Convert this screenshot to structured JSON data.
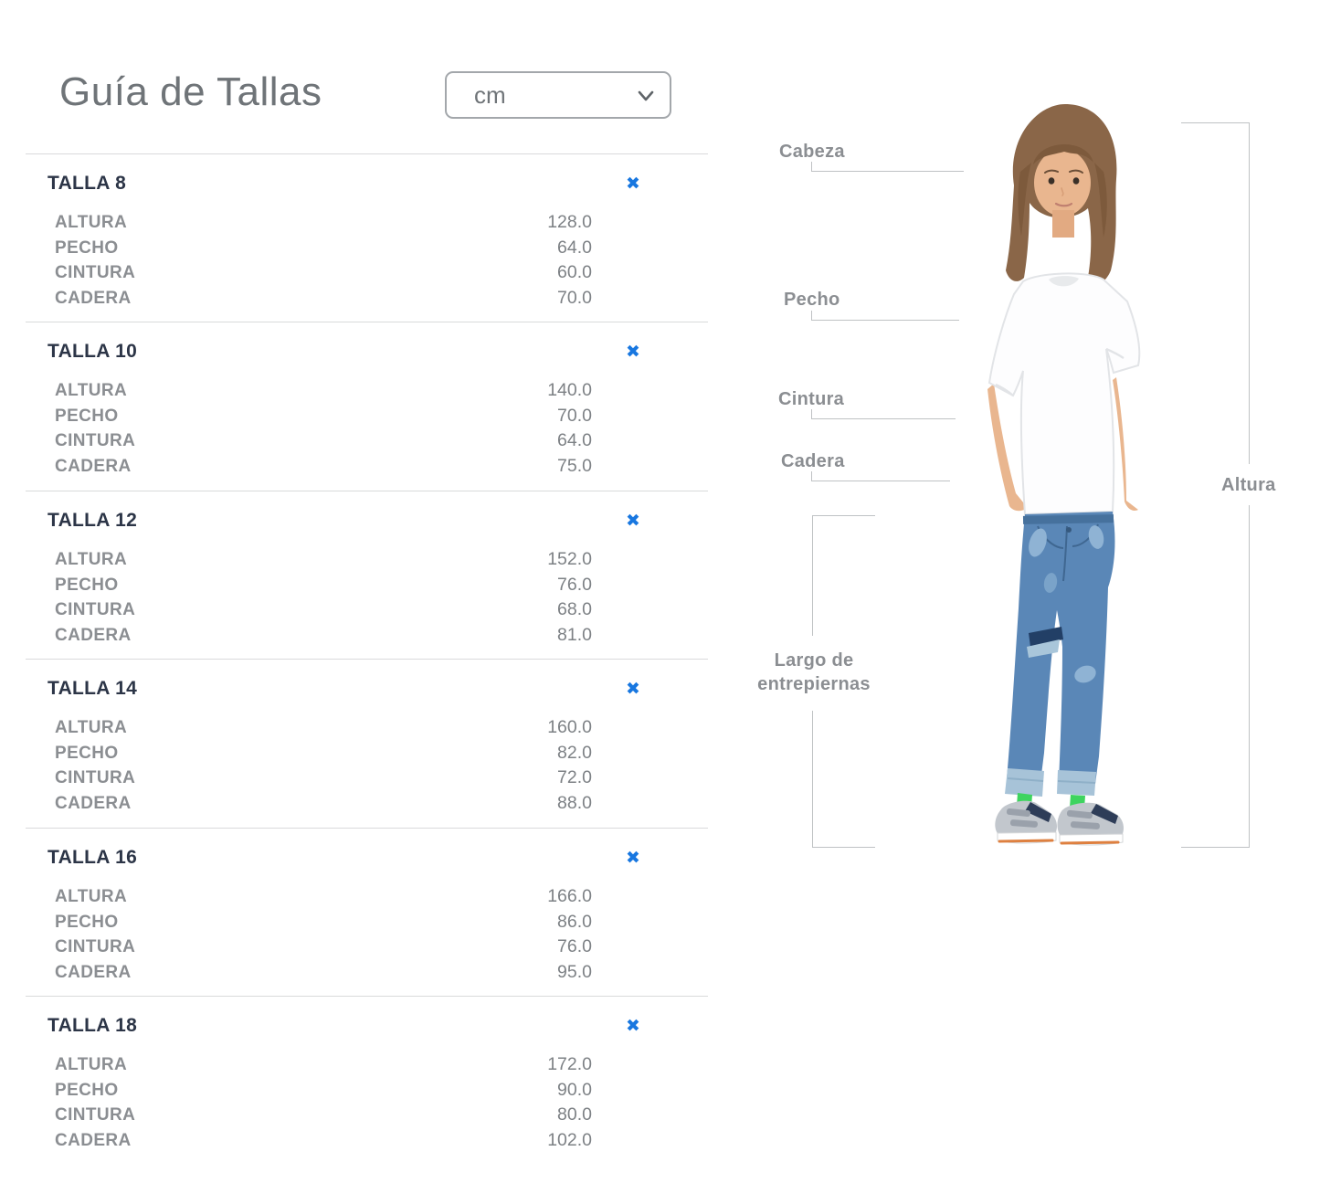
{
  "header": {
    "title": "Guía de Tallas",
    "unit_selector": {
      "value": "cm",
      "icon": "chevron-down"
    }
  },
  "measurement_labels": [
    "ALTURA",
    "PECHO",
    "CINTURA",
    "CADERA"
  ],
  "sizes": [
    {
      "name": "TALLA 8",
      "values": [
        "128.0",
        "64.0",
        "60.0",
        "70.0"
      ]
    },
    {
      "name": "TALLA 10",
      "values": [
        "140.0",
        "70.0",
        "64.0",
        "75.0"
      ]
    },
    {
      "name": "TALLA 12",
      "values": [
        "152.0",
        "76.0",
        "68.0",
        "81.0"
      ]
    },
    {
      "name": "TALLA 14",
      "values": [
        "160.0",
        "82.0",
        "72.0",
        "88.0"
      ]
    },
    {
      "name": "TALLA 16",
      "values": [
        "166.0",
        "86.0",
        "76.0",
        "95.0"
      ]
    },
    {
      "name": "TALLA 18",
      "values": [
        "172.0",
        "90.0",
        "80.0",
        "102.0"
      ]
    }
  ],
  "icons": {
    "close_glyph": "✖"
  },
  "diagram": {
    "labels": {
      "cabeza": "Cabeza",
      "pecho": "Pecho",
      "cintura": "Cintura",
      "cadera": "Cadera",
      "largo_line1": "Largo de",
      "largo_line2": "entrepiernas",
      "altura": "Altura"
    }
  },
  "colors": {
    "accent_blue": "#1877e0",
    "heading_navy": "#2c3547",
    "label_gray": "#8b8e92",
    "line_gray": "#d9dadb",
    "bracket_gray": "#bfc2c4"
  }
}
